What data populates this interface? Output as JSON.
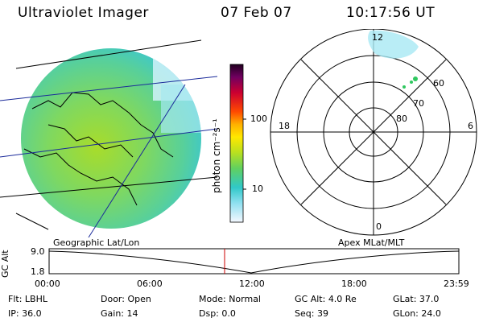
{
  "header": {
    "instrument": "Ultraviolet Imager",
    "date": "07 Feb 07",
    "time": "10:17:56 UT"
  },
  "colorbar": {
    "unit_label": "photon cm⁻²s⁻¹",
    "ticks": [
      "100",
      "10"
    ]
  },
  "polar_plot": {
    "mlt_labels": {
      "top": "12",
      "left": "18",
      "right": "6",
      "bottom": "0"
    },
    "lat_labels": [
      "60",
      "70",
      "80"
    ]
  },
  "timeline": {
    "left_caption": "Geographic Lat/Lon",
    "right_caption": "Apex MLat/MLT",
    "axis_title": "GC Alt",
    "y_ticks": [
      "9.0",
      "1.8"
    ],
    "x_ticks": [
      "00:00",
      "06:00",
      "12:00",
      "18:00",
      "23:59"
    ],
    "marker_time": "10:17:56"
  },
  "info_rows": [
    {
      "label": "Flt:",
      "value": "LBHL"
    },
    {
      "label": "Door:",
      "value": "Open"
    },
    {
      "label": "Mode:",
      "value": "Normal"
    },
    {
      "label": "GC Alt:",
      "value": "4.0 Re"
    },
    {
      "label": "GLat:",
      "value": "37.0"
    },
    {
      "label": "IP:",
      "value": "36.0"
    },
    {
      "label": "Gain:",
      "value": "14"
    },
    {
      "label": "Dsp:",
      "value": "0.0"
    },
    {
      "label": "Seq:",
      "value": "39"
    },
    {
      "label": "GLon:",
      "value": "24.0"
    }
  ],
  "colors": {
    "marker": "#cc0000",
    "disk_main": "#7fd860",
    "disk_edge": "#40c8c8"
  }
}
